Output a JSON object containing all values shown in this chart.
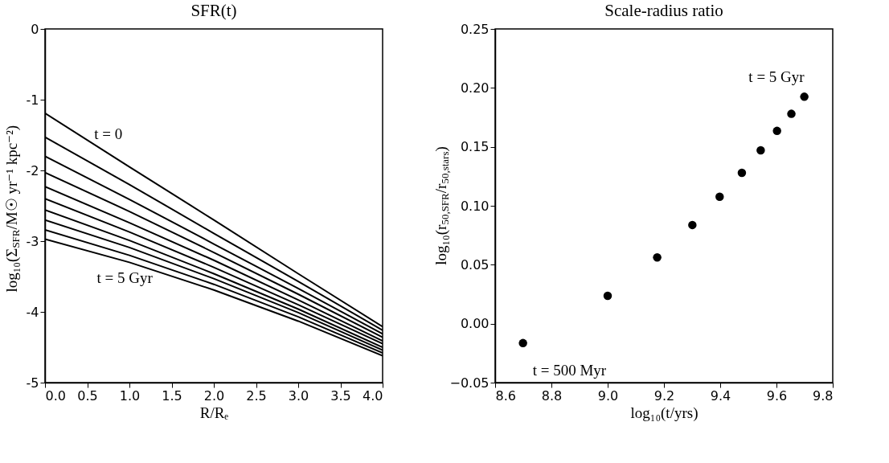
{
  "chart_data": [
    {
      "type": "line",
      "title": "SFR(t)",
      "xlabel": "R/Rₑ",
      "ylabel": "log₁₀(Σ$_{SFR}$/M☉ yr⁻¹ kpc⁻²)",
      "x": [
        0,
        1,
        2,
        3,
        4
      ],
      "series": [
        {
          "color": "#000000",
          "values": [
            -1.19,
            -1.95,
            -2.7,
            -3.46,
            -4.21
          ]
        },
        {
          "color": "#000000",
          "values": [
            -1.53,
            -2.2,
            -2.89,
            -3.57,
            -4.26
          ]
        },
        {
          "color": "#000000",
          "values": [
            -1.8,
            -2.41,
            -3.04,
            -3.67,
            -4.31
          ]
        },
        {
          "color": "#000000",
          "values": [
            -2.03,
            -2.58,
            -3.16,
            -3.75,
            -4.36
          ]
        },
        {
          "color": "#000000",
          "values": [
            -2.23,
            -2.74,
            -3.27,
            -3.83,
            -4.41
          ]
        },
        {
          "color": "#000000",
          "values": [
            -2.4,
            -2.87,
            -3.37,
            -3.9,
            -4.45
          ]
        },
        {
          "color": "#000000",
          "values": [
            -2.56,
            -2.99,
            -3.46,
            -3.96,
            -4.5
          ]
        },
        {
          "color": "#000000",
          "values": [
            -2.7,
            -3.09,
            -3.53,
            -4.01,
            -4.54
          ]
        },
        {
          "color": "#000000",
          "values": [
            -2.84,
            -3.2,
            -3.61,
            -4.07,
            -4.58
          ]
        },
        {
          "color": "#000000",
          "values": [
            -2.97,
            -3.3,
            -3.69,
            -4.13,
            -4.62
          ]
        }
      ],
      "xlim": [
        0,
        4
      ],
      "xticks": [
        {
          "value": 0,
          "label": "0.0"
        },
        {
          "value": 0.5,
          "label": "0.5"
        },
        {
          "value": 1,
          "label": "1.0"
        },
        {
          "value": 1.5,
          "label": "1.5"
        },
        {
          "value": 2,
          "label": "2.0"
        },
        {
          "value": 2.5,
          "label": "2.5"
        },
        {
          "value": 3,
          "label": "3.0"
        },
        {
          "value": 3.5,
          "label": "3.5"
        },
        {
          "value": 4,
          "label": "4.0"
        }
      ],
      "ylim": [
        -5,
        0
      ],
      "yticks": [
        -5,
        -4,
        -3,
        -2,
        -1,
        0
      ],
      "annotations": [
        {
          "text": "t = 0",
          "x": 0.75,
          "y": -1.76
        },
        {
          "text": "t = 5 Gyr",
          "x": 0.5,
          "y": -3.14
        }
      ],
      "line_style": "solid"
    },
    {
      "type": "scatter",
      "title": "Scale-radius ratio",
      "xlabel": "log₁₀(t/yrs)",
      "ylabel": "log₁₀(r$_{50,SFR}$/r$_{50,stars}$)",
      "x": [
        8.699,
        9.0,
        9.176,
        9.301,
        9.398,
        9.477,
        9.544,
        9.602,
        9.653,
        9.699
      ],
      "series": [
        {
          "color": "#000000",
          "values": [
            -0.0165,
            0.0236,
            0.0562,
            0.0837,
            0.1077,
            0.128,
            0.147,
            0.1635,
            0.178,
            0.1925
          ]
        }
      ],
      "xlim": [
        8.6,
        9.8
      ],
      "xticks": [
        {
          "value": 8.6,
          "label": "8.6"
        },
        {
          "value": 8.8,
          "label": "8.8"
        },
        {
          "value": 9.0,
          "label": "9.0"
        },
        {
          "value": 9.2,
          "label": "9.2"
        },
        {
          "value": 9.4,
          "label": "9.4"
        },
        {
          "value": 9.6,
          "label": "9.6"
        },
        {
          "value": 9.8,
          "label": "9.8"
        }
      ],
      "ylim": [
        -0.05,
        0.25
      ],
      "yticks": [
        {
          "value": -0.05,
          "label": "−0.05"
        },
        {
          "value": 0,
          "label": "0.00"
        },
        {
          "value": 0.05,
          "label": "0.05"
        },
        {
          "value": 0.1,
          "label": "0.10"
        },
        {
          "value": 0.15,
          "label": "0.15"
        },
        {
          "value": 0.2,
          "label": "0.20"
        },
        {
          "value": 0.25,
          "label": "0.25"
        }
      ],
      "annotations": [
        {
          "text": "t = 5 Gyr",
          "x": 9.699,
          "y": 0.1925
        },
        {
          "text": "t = 500 Myr",
          "x": 8.699,
          "y": -0.0165
        }
      ],
      "marker": "circle"
    }
  ]
}
